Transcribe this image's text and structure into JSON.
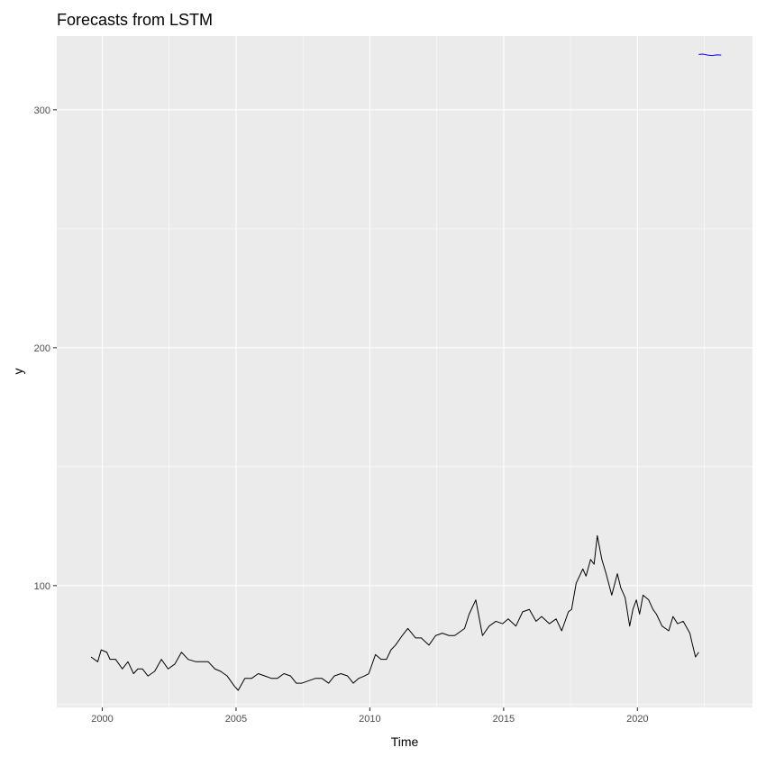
{
  "chart_data": {
    "type": "line",
    "title": "Forecasts from LSTM",
    "xlabel": "Time",
    "ylabel": "y",
    "xlim": [
      1998.3,
      2024.3
    ],
    "ylim": [
      48.8,
      331
    ],
    "x_ticks": [
      2000,
      2005,
      2010,
      2015,
      2020
    ],
    "x_tick_labels": [
      "2000",
      "2005",
      "2010",
      "2015",
      "2020"
    ],
    "x_minor_ticks": [
      2002.5,
      2007.5,
      2012.5,
      2017.5,
      2022.5
    ],
    "y_ticks": [
      100,
      200,
      300
    ],
    "y_tick_labels": [
      "100",
      "200",
      "300"
    ],
    "y_minor_ticks": [
      50,
      150,
      250
    ],
    "grid": true,
    "colors": {
      "panel_background": "#ebebeb",
      "grid_line": "#ffffff",
      "observed": "#000000",
      "forecast": "#0000ff"
    },
    "series": [
      {
        "key": "observed",
        "x": [
          1999.58,
          1999.83,
          1999.96,
          2000.17,
          2000.29,
          2000.5,
          2000.75,
          2000.96,
          2001.17,
          2001.33,
          2001.5,
          2001.71,
          2001.96,
          2002.21,
          2002.46,
          2002.71,
          2002.96,
          2003.21,
          2003.5,
          2003.75,
          2003.96,
          2004.21,
          2004.42,
          2004.67,
          2004.92,
          2005.08,
          2005.33,
          2005.58,
          2005.83,
          2006.08,
          2006.33,
          2006.54,
          2006.79,
          2007.04,
          2007.25,
          2007.46,
          2007.71,
          2007.96,
          2008.21,
          2008.46,
          2008.67,
          2008.92,
          2009.17,
          2009.38,
          2009.58,
          2009.79,
          2009.96,
          2010.21,
          2010.42,
          2010.62,
          2010.79,
          2010.96,
          2011.21,
          2011.42,
          2011.71,
          2011.92,
          2012.21,
          2012.46,
          2012.71,
          2012.96,
          2013.17,
          2013.42,
          2013.54,
          2013.71,
          2013.96,
          2014.21,
          2014.46,
          2014.71,
          2014.96,
          2015.17,
          2015.46,
          2015.71,
          2015.96,
          2016.21,
          2016.42,
          2016.71,
          2016.96,
          2017.17,
          2017.42,
          2017.54,
          2017.71,
          2017.96,
          2018.08,
          2018.25,
          2018.38,
          2018.5,
          2018.67,
          2018.83,
          2019.04,
          2019.25,
          2019.38,
          2019.54,
          2019.71,
          2019.83,
          2019.96,
          2020.08,
          2020.21,
          2020.42,
          2020.58,
          2020.71,
          2020.92,
          2021.17,
          2021.33,
          2021.5,
          2021.71,
          2021.96,
          2022.04,
          2022.17,
          2022.29
        ],
        "y": [
          70,
          68,
          73,
          72,
          69,
          69,
          65,
          68,
          63,
          65,
          65,
          62,
          64,
          69,
          65,
          67,
          72,
          69,
          68,
          68,
          68,
          65,
          64,
          62,
          58,
          56,
          61,
          61,
          63,
          62,
          61,
          61,
          63,
          62,
          59,
          59,
          60,
          61,
          61,
          59,
          62,
          63,
          62,
          59,
          61,
          62,
          63,
          71,
          69,
          69,
          73,
          75,
          79,
          82,
          78,
          78,
          75,
          79,
          80,
          79,
          79,
          81,
          82,
          88,
          94,
          79,
          83,
          85,
          84,
          86,
          83,
          89,
          90,
          85,
          87,
          84,
          86,
          81,
          89,
          90,
          101,
          107,
          104,
          111,
          109,
          121,
          111,
          105,
          96,
          105,
          99,
          95,
          83,
          90,
          94,
          88,
          96,
          94,
          90,
          88,
          83,
          81,
          87,
          84,
          85,
          80,
          76,
          70,
          72
        ]
      },
      {
        "key": "forecast",
        "x": [
          2022.29,
          2022.46,
          2022.62,
          2022.79,
          2022.96,
          2023.13
        ],
        "y": [
          323.3,
          323.4,
          323.0,
          322.8,
          323.1,
          323.0
        ]
      }
    ]
  }
}
